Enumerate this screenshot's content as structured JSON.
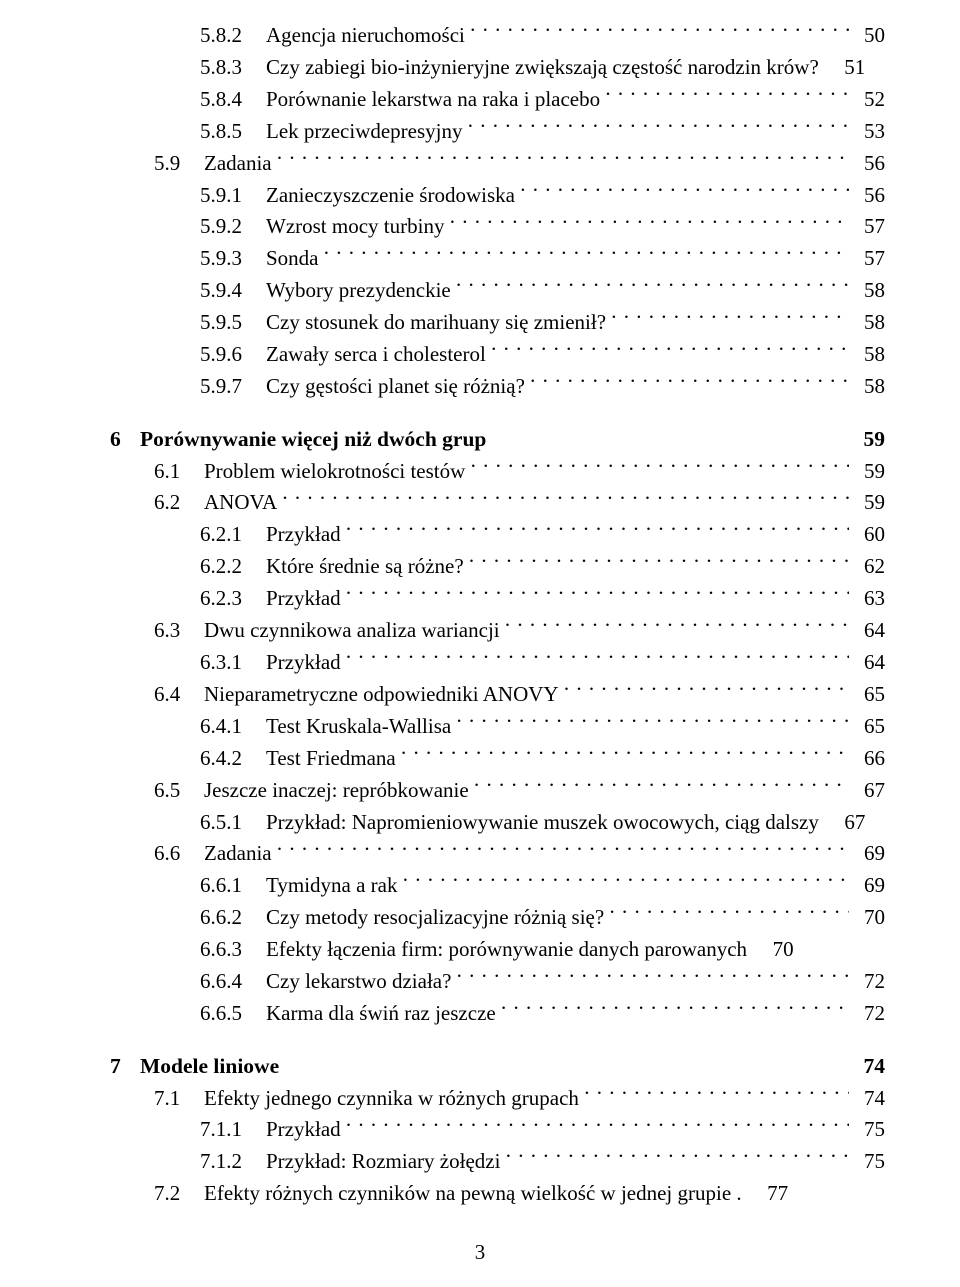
{
  "entries": [
    {
      "indent": 2,
      "num": "5.8.2",
      "title": "Agencja nieruchomości",
      "page": "50",
      "bold": false
    },
    {
      "indent": 2,
      "num": "5.8.3",
      "title": "Czy zabiegi bio-inżynieryjne zwiększają częstość narodzin krów?",
      "page": "51",
      "bold": false,
      "noleader": true
    },
    {
      "indent": 2,
      "num": "5.8.4",
      "title": "Porównanie lekarstwa na raka i placebo",
      "page": "52",
      "bold": false
    },
    {
      "indent": 2,
      "num": "5.8.5",
      "title": "Lek przeciwdepresyjny",
      "page": "53",
      "bold": false
    },
    {
      "indent": 1,
      "num": "5.9",
      "title": "Zadania",
      "page": "56",
      "bold": false
    },
    {
      "indent": 2,
      "num": "5.9.1",
      "title": "Zanieczyszczenie środowiska",
      "page": "56",
      "bold": false
    },
    {
      "indent": 2,
      "num": "5.9.2",
      "title": "Wzrost mocy turbiny",
      "page": "57",
      "bold": false
    },
    {
      "indent": 2,
      "num": "5.9.3",
      "title": "Sonda",
      "page": "57",
      "bold": false
    },
    {
      "indent": 2,
      "num": "5.9.4",
      "title": "Wybory prezydenckie",
      "page": "58",
      "bold": false
    },
    {
      "indent": 2,
      "num": "5.9.5",
      "title": "Czy stosunek do marihuany się zmienił?",
      "page": "58",
      "bold": false
    },
    {
      "indent": 2,
      "num": "5.9.6",
      "title": "Zawały serca i cholesterol",
      "page": "58",
      "bold": false
    },
    {
      "indent": 2,
      "num": "5.9.7",
      "title": "Czy gęstości planet się różnią?",
      "page": "58",
      "bold": false
    },
    {
      "indent": -1
    },
    {
      "indent": 0,
      "num": "6",
      "title": "Porównywanie więcej niż dwóch grup",
      "page": "59",
      "bold": true
    },
    {
      "indent": 1,
      "num": "6.1",
      "title": "Problem wielokrotności testów",
      "page": "59",
      "bold": false
    },
    {
      "indent": 1,
      "num": "6.2",
      "title": "ANOVA",
      "page": "59",
      "bold": false
    },
    {
      "indent": 2,
      "num": "6.2.1",
      "title": "Przykład",
      "page": "60",
      "bold": false
    },
    {
      "indent": 2,
      "num": "6.2.2",
      "title": "Które średnie są różne?",
      "page": "62",
      "bold": false
    },
    {
      "indent": 2,
      "num": "6.2.3",
      "title": "Przykład",
      "page": "63",
      "bold": false
    },
    {
      "indent": 1,
      "num": "6.3",
      "title": "Dwu czynnikowa analiza wariancji",
      "page": "64",
      "bold": false
    },
    {
      "indent": 2,
      "num": "6.3.1",
      "title": "Przykład",
      "page": "64",
      "bold": false
    },
    {
      "indent": 1,
      "num": "6.4",
      "title": "Nieparametryczne odpowiedniki ANOVY",
      "page": "65",
      "bold": false
    },
    {
      "indent": 2,
      "num": "6.4.1",
      "title": "Test Kruskala-Wallisa",
      "page": "65",
      "bold": false
    },
    {
      "indent": 2,
      "num": "6.4.2",
      "title": "Test Friedmana",
      "page": "66",
      "bold": false
    },
    {
      "indent": 1,
      "num": "6.5",
      "title": "Jeszcze inaczej: repróbkowanie",
      "page": "67",
      "bold": false
    },
    {
      "indent": 2,
      "num": "6.5.1",
      "title": "Przykład: Napromieniowywanie muszek owocowych, ciąg dalszy",
      "page": "67",
      "bold": false,
      "noleader": true
    },
    {
      "indent": 1,
      "num": "6.6",
      "title": "Zadania",
      "page": "69",
      "bold": false
    },
    {
      "indent": 2,
      "num": "6.6.1",
      "title": "Tymidyna a rak",
      "page": "69",
      "bold": false
    },
    {
      "indent": 2,
      "num": "6.6.2",
      "title": "Czy metody resocjalizacyjne różnią się?",
      "page": "70",
      "bold": false
    },
    {
      "indent": 2,
      "num": "6.6.3",
      "title": "Efekty łączenia firm: porównywanie danych parowanych",
      "page": "70",
      "bold": false,
      "noleader": true
    },
    {
      "indent": 2,
      "num": "6.6.4",
      "title": "Czy lekarstwo działa?",
      "page": "72",
      "bold": false
    },
    {
      "indent": 2,
      "num": "6.6.5",
      "title": "Karma dla świń raz jeszcze",
      "page": "72",
      "bold": false
    },
    {
      "indent": -1
    },
    {
      "indent": 0,
      "num": "7",
      "title": "Modele liniowe",
      "page": "74",
      "bold": true
    },
    {
      "indent": 1,
      "num": "7.1",
      "title": "Efekty jednego czynnika w różnych grupach",
      "page": "74",
      "bold": false
    },
    {
      "indent": 2,
      "num": "7.1.1",
      "title": "Przykład",
      "page": "75",
      "bold": false
    },
    {
      "indent": 2,
      "num": "7.1.2",
      "title": "Przykład: Rozmiary żołędzi",
      "page": "75",
      "bold": false
    },
    {
      "indent": 1,
      "num": "7.2",
      "title": "Efekty różnych czynników na pewną wielkość w jednej grupie .",
      "page": "77",
      "bold": false,
      "noleader": true
    }
  ],
  "layout": {
    "chapter_num_width": 30,
    "section_num_width": 50,
    "subsection_num_width": 66
  },
  "footer_page": "3"
}
